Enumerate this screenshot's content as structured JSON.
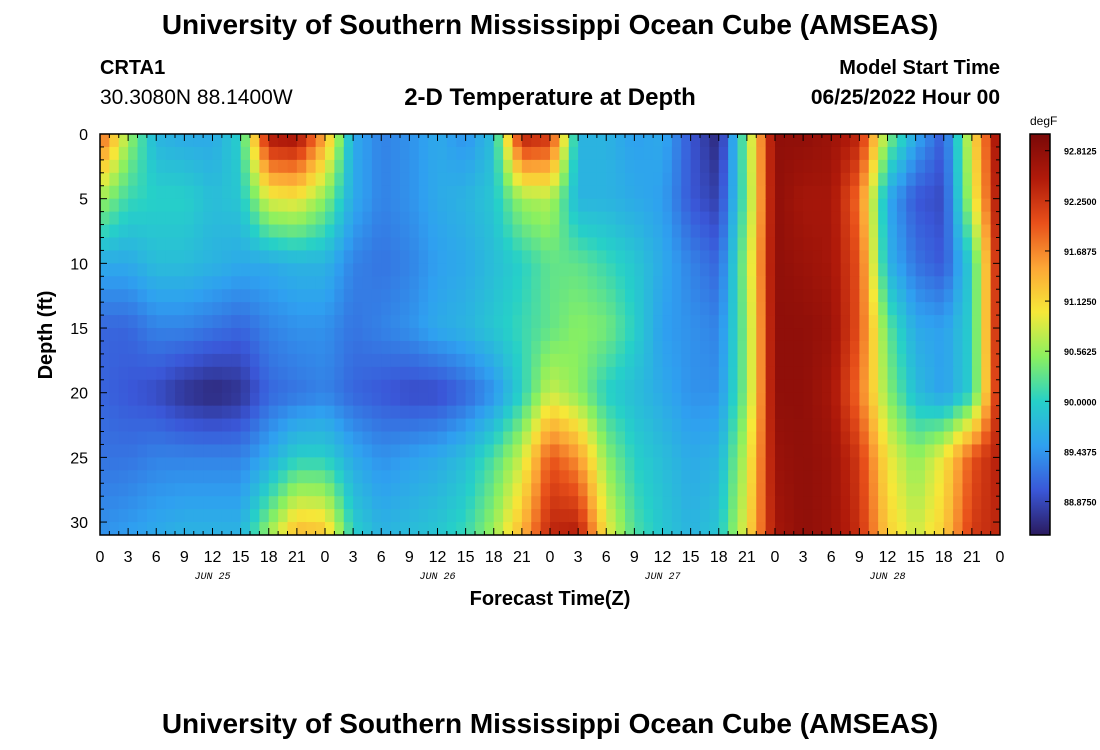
{
  "header": {
    "main_title": "University of Southern Mississippi Ocean Cube (AMSEAS)",
    "station_id": "CRTA1",
    "station_coords": "30.3080N  88.1400W",
    "plot_title": "2-D Temperature at Depth",
    "model_start_label": "Model Start Time",
    "model_start_value": "06/25/2022 Hour 00"
  },
  "footer": {
    "repeated_title": "University of Southern Mississippi Ocean Cube (AMSEAS)"
  },
  "colors": {
    "colormap": [
      "#2a1a5e",
      "#3a57d8",
      "#2fa0f0",
      "#26d0c8",
      "#8af060",
      "#f6e838",
      "#fca636",
      "#e8501a",
      "#b01a0a",
      "#7a0808"
    ]
  },
  "chart_data": {
    "type": "heatmap",
    "xlabel": "Forecast Time(Z)",
    "ylabel": "Depth (ft)",
    "xlim": [
      0,
      96
    ],
    "ylim": [
      0,
      31
    ],
    "x_tick_labels": [
      "0",
      "3",
      "6",
      "9",
      "12",
      "15",
      "18",
      "21",
      "0",
      "3",
      "6",
      "9",
      "12",
      "15",
      "18",
      "21",
      "0",
      "3",
      "6",
      "9",
      "12",
      "15",
      "18",
      "21",
      "0",
      "3",
      "6",
      "9",
      "12",
      "15",
      "18",
      "21",
      "0"
    ],
    "x_tick_hours": [
      0,
      3,
      6,
      9,
      12,
      15,
      18,
      21,
      24,
      27,
      30,
      33,
      36,
      39,
      42,
      45,
      48,
      51,
      54,
      57,
      60,
      63,
      66,
      69,
      72,
      75,
      78,
      81,
      84,
      87,
      90,
      93,
      96
    ],
    "day_labels": [
      {
        "label": "JUN 25",
        "hour": 12
      },
      {
        "label": "JUN 26",
        "hour": 36
      },
      {
        "label": "JUN 27",
        "hour": 60
      },
      {
        "label": "JUN 28",
        "hour": 84
      }
    ],
    "y_ticks": [
      0,
      5,
      10,
      15,
      20,
      25,
      30
    ],
    "y_tick_labels": [
      "0",
      "5",
      "10",
      "15",
      "20",
      "25",
      "30"
    ],
    "colorbar": {
      "unit": "degF",
      "min": 88.5,
      "max": 93.0,
      "tick_values": [
        92.8125,
        92.25,
        91.6875,
        91.125,
        90.5625,
        90.0,
        89.4375,
        88.875
      ],
      "tick_labels": [
        "92.8125",
        "92.2500",
        "91.6875",
        "91.1250",
        "90.5625",
        "90.0000",
        "89.4375",
        "88.8750"
      ]
    },
    "depth_levels_ft": [
      0,
      5,
      10,
      15,
      20,
      25,
      31
    ],
    "time_hours": [
      0,
      3,
      6,
      9,
      12,
      15,
      18,
      21,
      24,
      27,
      30,
      33,
      36,
      39,
      42,
      45,
      48,
      51,
      54,
      57,
      60,
      63,
      66,
      69,
      72,
      75,
      78,
      81,
      84,
      87,
      90,
      93,
      96
    ],
    "temperature_degF": [
      [
        92.0,
        90.6,
        89.7,
        89.6,
        89.6,
        90.0,
        92.6,
        92.7,
        91.5,
        89.6,
        89.3,
        89.4,
        89.6,
        89.4,
        89.8,
        92.5,
        92.3,
        89.7,
        89.7,
        89.5,
        89.6,
        89.0,
        88.6,
        90.5,
        92.8,
        92.8,
        92.7,
        92.4,
        90.5,
        89.6,
        89.0,
        91.0,
        92.8
      ],
      [
        90.6,
        90.1,
        90.0,
        90.0,
        89.8,
        89.9,
        90.9,
        91.0,
        90.5,
        89.6,
        89.3,
        89.4,
        89.6,
        89.7,
        89.9,
        90.6,
        90.7,
        89.7,
        89.7,
        89.6,
        89.5,
        89.0,
        88.8,
        90.4,
        92.8,
        92.6,
        92.6,
        91.8,
        89.6,
        89.0,
        88.9,
        90.8,
        92.7
      ],
      [
        89.6,
        89.6,
        89.8,
        89.8,
        89.7,
        89.6,
        89.6,
        89.7,
        89.7,
        89.3,
        89.2,
        89.3,
        89.5,
        89.6,
        89.8,
        90.0,
        90.3,
        90.3,
        90.1,
        89.9,
        89.6,
        89.3,
        89.1,
        90.6,
        92.8,
        92.7,
        92.6,
        92.0,
        89.7,
        89.2,
        89.0,
        90.0,
        92.6
      ],
      [
        89.1,
        89.1,
        89.3,
        89.3,
        89.2,
        89.1,
        89.3,
        89.4,
        89.4,
        89.2,
        89.3,
        89.4,
        89.6,
        89.7,
        89.9,
        90.1,
        90.3,
        90.5,
        90.4,
        90.0,
        89.5,
        89.4,
        89.3,
        90.5,
        92.8,
        92.8,
        92.7,
        92.0,
        90.3,
        89.6,
        89.5,
        90.0,
        92.6
      ],
      [
        89.1,
        89.0,
        88.9,
        88.7,
        88.6,
        88.7,
        89.1,
        89.2,
        89.3,
        89.1,
        89.0,
        88.9,
        88.9,
        89.1,
        89.4,
        90.0,
        90.8,
        90.5,
        90.0,
        89.8,
        89.6,
        89.4,
        89.4,
        90.5,
        92.8,
        92.8,
        92.6,
        91.8,
        90.5,
        89.8,
        89.5,
        90.0,
        92.5
      ],
      [
        89.2,
        89.2,
        89.3,
        89.3,
        89.3,
        89.3,
        89.6,
        90.0,
        90.0,
        89.6,
        89.4,
        89.5,
        89.6,
        89.8,
        90.2,
        90.8,
        92.0,
        91.6,
        90.5,
        90.0,
        89.8,
        89.6,
        89.7,
        90.8,
        92.7,
        92.8,
        92.7,
        92.2,
        91.0,
        90.5,
        91.0,
        92.0,
        92.5
      ],
      [
        89.4,
        89.5,
        89.6,
        89.7,
        89.7,
        89.7,
        90.6,
        91.4,
        91.3,
        90.0,
        89.7,
        89.8,
        89.9,
        90.1,
        90.6,
        91.4,
        92.4,
        92.5,
        91.0,
        90.2,
        89.9,
        89.7,
        89.9,
        91.0,
        92.6,
        92.8,
        92.7,
        92.3,
        91.2,
        90.8,
        91.2,
        92.2,
        92.4
      ]
    ]
  }
}
